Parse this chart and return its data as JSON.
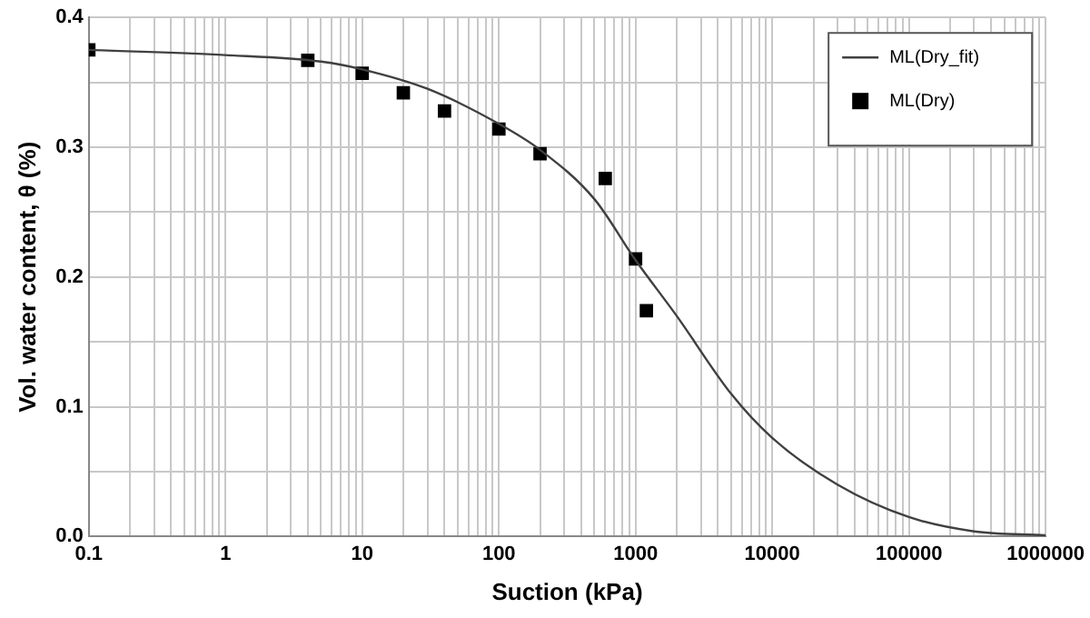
{
  "chart_data": {
    "type": "line",
    "xlabel": "Suction (kPa)",
    "ylabel": "Vol. water content, θ (%)",
    "log": "x",
    "grid": true,
    "legend": "top right",
    "xlim": [
      0.1,
      1000000
    ],
    "ylim": [
      0,
      0.4
    ],
    "xticks": [
      0.1,
      {
        "value": 0.2,
        "label": null
      },
      {
        "value": 0.3,
        "label": null
      },
      {
        "value": 0.4,
        "label": null
      },
      {
        "value": 0.5,
        "label": null
      },
      {
        "value": 0.6,
        "label": null
      },
      {
        "value": 0.7,
        "label": null
      },
      {
        "value": 0.8,
        "label": null
      },
      {
        "value": 0.9,
        "label": null
      },
      1,
      {
        "value": 2,
        "label": null
      },
      {
        "value": 3,
        "label": null
      },
      {
        "value": 4,
        "label": null
      },
      {
        "value": 5,
        "label": null
      },
      {
        "value": 6,
        "label": null
      },
      {
        "value": 7,
        "label": null
      },
      {
        "value": 8,
        "label": null
      },
      {
        "value": 9,
        "label": null
      },
      10,
      {
        "value": 20,
        "label": null
      },
      {
        "value": 30,
        "label": null
      },
      {
        "value": 40,
        "label": null
      },
      {
        "value": 50,
        "label": null
      },
      {
        "value": 60,
        "label": null
      },
      {
        "value": 70,
        "label": null
      },
      {
        "value": 80,
        "label": null
      },
      {
        "value": 90,
        "label": null
      },
      100,
      {
        "value": 200,
        "label": null
      },
      {
        "value": 300,
        "label": null
      },
      {
        "value": 400,
        "label": null
      },
      {
        "value": 500,
        "label": null
      },
      {
        "value": 600,
        "label": null
      },
      {
        "value": 700,
        "label": null
      },
      {
        "value": 800,
        "label": null
      },
      {
        "value": 900,
        "label": null
      },
      1000,
      {
        "value": 2000,
        "label": null
      },
      {
        "value": 3000,
        "label": null
      },
      {
        "value": 4000,
        "label": null
      },
      {
        "value": 5000,
        "label": null
      },
      {
        "value": 6000,
        "label": null
      },
      {
        "value": 7000,
        "label": null
      },
      {
        "value": 8000,
        "label": null
      },
      {
        "value": 9000,
        "label": null
      },
      10000,
      {
        "value": 20000,
        "label": null
      },
      {
        "value": 30000,
        "label": null
      },
      {
        "value": 40000,
        "label": null
      },
      {
        "value": 50000,
        "label": null
      },
      {
        "value": 60000,
        "label": null
      },
      {
        "value": 70000,
        "label": null
      },
      {
        "value": 80000,
        "label": null
      },
      {
        "value": 90000,
        "label": null
      },
      100000,
      {
        "value": 200000,
        "label": null
      },
      {
        "value": 300000,
        "label": null
      },
      {
        "value": 400000,
        "label": null
      },
      {
        "value": 500000,
        "label": null
      },
      {
        "value": 600000,
        "label": null
      },
      {
        "value": 700000,
        "label": null
      },
      {
        "value": 800000,
        "label": null
      },
      {
        "value": 900000,
        "label": null
      },
      1000000
    ],
    "yticks": [
      {
        "value": 0,
        "label": "0.0"
      },
      {
        "value": 0.05,
        "label": null
      },
      {
        "value": 0.1,
        "label": "0.1"
      },
      {
        "value": 0.15,
        "label": null
      },
      {
        "value": 0.2,
        "label": "0.2"
      },
      {
        "value": 0.25,
        "label": null
      },
      {
        "value": 0.3,
        "label": "0.3"
      },
      {
        "value": 0.35,
        "label": null
      },
      {
        "value": 0.4,
        "label": "0.4"
      }
    ],
    "series": [
      {
        "name": "ML(Dry_fit)",
        "type": "line",
        "color": "#404040",
        "marker": "none",
        "line_style": "solid",
        "x": [
          0.1,
          1,
          5,
          10,
          30,
          100,
          200,
          500,
          1000,
          2000,
          5000,
          10000,
          30000,
          100000,
          300000,
          1000000
        ],
        "values": [
          0.375,
          0.371,
          0.366,
          0.36,
          0.345,
          0.318,
          0.298,
          0.26,
          0.213,
          0.17,
          0.11,
          0.076,
          0.04,
          0.015,
          0.004,
          0.001
        ]
      },
      {
        "name": "ML(Dry)",
        "type": "scatter",
        "color": "#000000",
        "marker": "square",
        "x": [
          0.1,
          4,
          10,
          20,
          40,
          100,
          200,
          600,
          1000,
          1200
        ],
        "values": [
          0.375,
          0.367,
          0.357,
          0.342,
          0.328,
          0.314,
          0.295,
          0.276,
          0.214,
          0.174
        ]
      }
    ]
  }
}
